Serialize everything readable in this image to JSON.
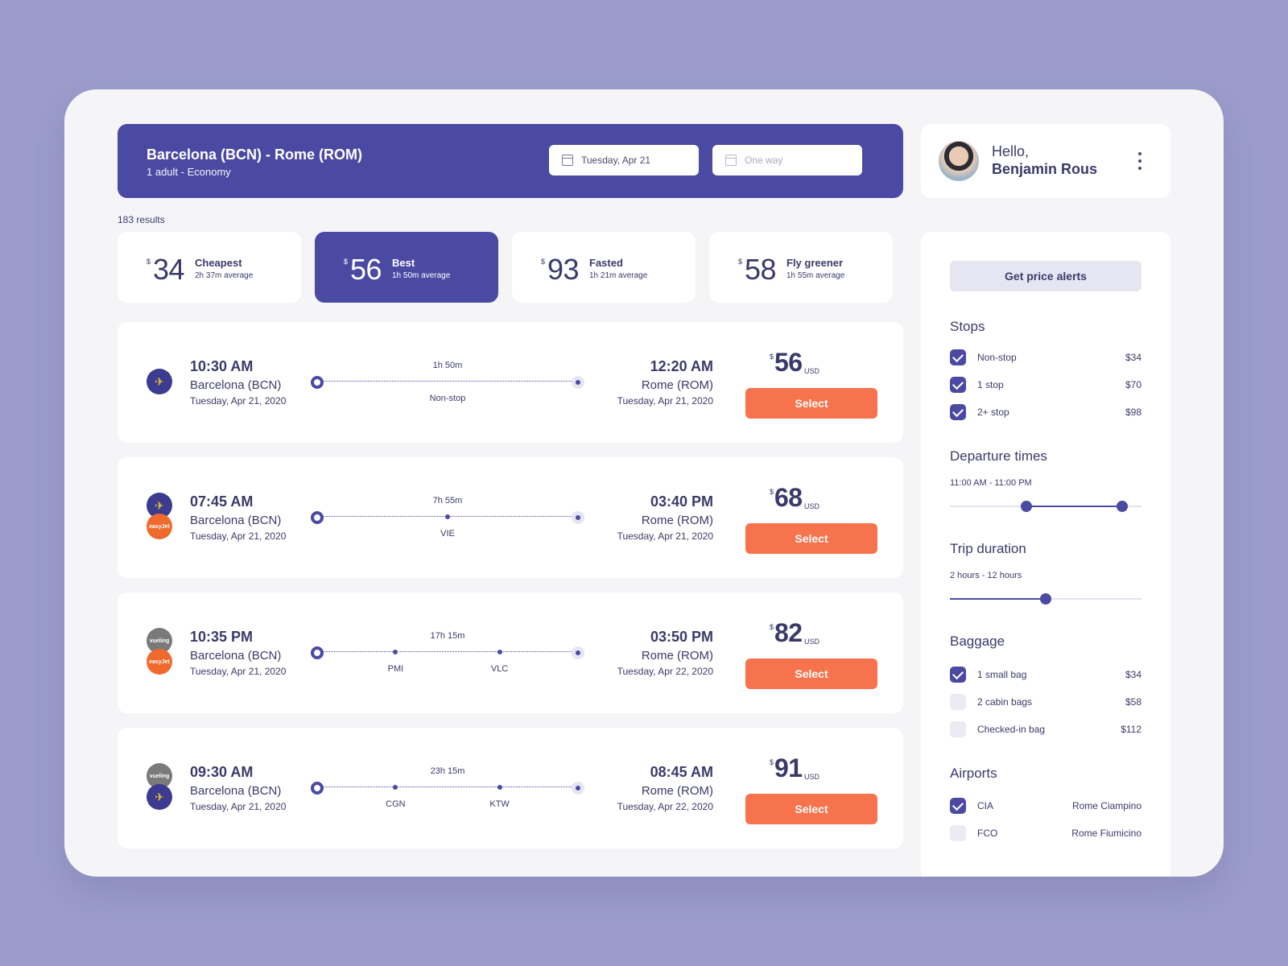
{
  "search": {
    "route": "Barcelona (BCN) - Rome (ROM)",
    "passengers": "1 adult - Economy",
    "depart_date": "Tuesday, Apr 21",
    "return_placeholder": "One way"
  },
  "profile": {
    "greeting": "Hello,",
    "name": "Benjamin Rous"
  },
  "results_count": "183 results",
  "sort_options": [
    {
      "currency": "$",
      "amount": "34",
      "label": "Cheapest",
      "average": "2h 37m  average"
    },
    {
      "currency": "$",
      "amount": "56",
      "label": "Best",
      "average": "1h 50m  average"
    },
    {
      "currency": "$",
      "amount": "93",
      "label": "Fasted",
      "average": "1h 21m  average"
    },
    {
      "currency": "$",
      "amount": "58",
      "label": "Fly greener",
      "average": "1h 55m  average"
    }
  ],
  "flights": [
    {
      "airlines": [
        "ryanair"
      ],
      "dep_time": "10:30 AM",
      "dep_city": "Barcelona (BCN)",
      "dep_date": "Tuesday, Apr 21, 2020",
      "duration": "1h 50m",
      "stops": [],
      "nonstop_label": "Non-stop",
      "arr_time": "12:20 AM",
      "arr_city": "Rome (ROM)",
      "arr_date": "Tuesday, Apr 21, 2020",
      "currency": "$",
      "price": "56",
      "price_unit": "USD",
      "select_label": "Select"
    },
    {
      "airlines": [
        "ryanair",
        "easyjet"
      ],
      "dep_time": "07:45 AM",
      "dep_city": "Barcelona (BCN)",
      "dep_date": "Tuesday, Apr 21, 2020",
      "duration": "7h 55m",
      "stops": [
        "VIE"
      ],
      "arr_time": "03:40 PM",
      "arr_city": "Rome (ROM)",
      "arr_date": "Tuesday, Apr 21, 2020",
      "currency": "$",
      "price": "68",
      "price_unit": "USD",
      "select_label": "Select"
    },
    {
      "airlines": [
        "vueling",
        "easyjet"
      ],
      "dep_time": "10:35 PM",
      "dep_city": "Barcelona (BCN)",
      "dep_date": "Tuesday, Apr 21, 2020",
      "duration": "17h 15m",
      "stops": [
        "PMI",
        "VLC"
      ],
      "arr_time": "03:50 PM",
      "arr_city": "Rome (ROM)",
      "arr_date": "Tuesday, Apr 22, 2020",
      "currency": "$",
      "price": "82",
      "price_unit": "USD",
      "select_label": "Select"
    },
    {
      "airlines": [
        "vueling",
        "ryanair"
      ],
      "dep_time": "09:30 AM",
      "dep_city": "Barcelona (BCN)",
      "dep_date": "Tuesday, Apr 21, 2020",
      "duration": "23h 15m",
      "stops": [
        "CGN",
        "KTW"
      ],
      "arr_time": "08:45 AM",
      "arr_city": "Rome (ROM)",
      "arr_date": "Tuesday, Apr 22, 2020",
      "currency": "$",
      "price": "91",
      "price_unit": "USD",
      "select_label": "Select"
    }
  ],
  "airline_logo_text": {
    "easyjet": "easyJet",
    "vueling": "vueling"
  },
  "filters": {
    "alerts_label": "Get price alerts",
    "stops_title": "Stops",
    "stops": [
      {
        "name": "Non-stop",
        "price": "$34",
        "checked": true
      },
      {
        "name": "1 stop",
        "price": "$70",
        "checked": true
      },
      {
        "name": "2+ stop",
        "price": "$98",
        "checked": true
      }
    ],
    "departure_title": "Departure times",
    "departure_range": "11:00 AM - 11:00 PM",
    "departure_slider": {
      "low": 0.4,
      "high": 0.9
    },
    "duration_title": "Trip duration",
    "duration_range": "2 hours - 12 hours",
    "duration_slider": {
      "value": 0.5
    },
    "baggage_title": "Baggage",
    "baggage": [
      {
        "name": "1 small bag",
        "price": "$34",
        "checked": true
      },
      {
        "name": "2 cabin bags",
        "price": "$58",
        "checked": false
      },
      {
        "name": "Checked-in bag",
        "price": "$112",
        "checked": false
      }
    ],
    "airports_title": "Airports",
    "airports": [
      {
        "name": "CIA",
        "price": "Rome Ciampino",
        "checked": true
      },
      {
        "name": "FCO",
        "price": "Rome Fiumicino",
        "checked": false
      }
    ]
  },
  "colors": {
    "primary": "#4a4aa3",
    "accent": "#f7734e",
    "background": "#9b9ccb"
  }
}
